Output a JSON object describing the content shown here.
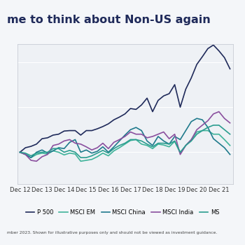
{
  "chart_data": {
    "type": "line",
    "title": "me to think about Non-US again",
    "footnote": "mber 2023. Shown for illustrative purposes only and should not be viewed as investment guidance.",
    "categories": [
      "Dec 12",
      null,
      null,
      null,
      "Dec 13",
      null,
      null,
      null,
      "Dec 14",
      null,
      null,
      null,
      "Dec 15",
      null,
      null,
      null,
      "Dec 16",
      null,
      null,
      null,
      "Dec 17",
      null,
      null,
      null,
      "Dec 18",
      null,
      null,
      null,
      "Dec 19",
      null,
      null,
      null,
      "Dec 20",
      null,
      null,
      null,
      "Dec 21",
      null,
      null
    ],
    "series": [
      {
        "name": "P 500",
        "color": "#1f2a5a",
        "values": [
          100,
          110,
          113,
          118,
          130,
          132,
          138,
          140,
          147,
          148,
          148,
          138,
          148,
          148,
          152,
          157,
          163,
          172,
          178,
          185,
          197,
          195,
          205,
          220,
          190,
          215,
          225,
          230,
          250,
          200,
          240,
          265,
          295,
          312,
          330,
          338,
          325,
          310,
          285
        ]
      },
      {
        "name": "MSCI EM",
        "color": "#3fb39a",
        "values": [
          100,
          95,
          88,
          95,
          98,
          96,
          103,
          100,
          94,
          98,
          96,
          80,
          82,
          84,
          90,
          98,
          92,
          103,
          110,
          118,
          126,
          128,
          118,
          115,
          108,
          118,
          116,
          112,
          124,
          98,
          115,
          128,
          145,
          148,
          148,
          140,
          140,
          128,
          115
        ]
      },
      {
        "name": "MSCI China",
        "color": "#1f7a8c",
        "values": [
          100,
          95,
          88,
          100,
          105,
          98,
          103,
          110,
          108,
          122,
          128,
          100,
          105,
          98,
          102,
          112,
          100,
          112,
          125,
          138,
          150,
          155,
          148,
          125,
          115,
          135,
          125,
          118,
          135,
          128,
          148,
          168,
          175,
          172,
          155,
          130,
          120,
          110,
          95
        ]
      },
      {
        "name": "MSCI India",
        "color": "#8a4f9e",
        "values": [
          100,
          95,
          82,
          80,
          90,
          95,
          115,
          118,
          125,
          128,
          120,
          118,
          112,
          105,
          110,
          120,
          108,
          122,
          128,
          135,
          145,
          140,
          140,
          132,
          135,
          140,
          145,
          130,
          140,
          95,
          115,
          128,
          150,
          160,
          170,
          185,
          190,
          175,
          165
        ]
      },
      {
        "name": "MS",
        "color": "#2a9d8f",
        "values": [
          100,
          98,
          92,
          98,
          100,
          100,
          108,
          108,
          100,
          104,
          100,
          88,
          88,
          92,
          98,
          104,
          98,
          108,
          115,
          120,
          128,
          128,
          125,
          118,
          112,
          120,
          120,
          118,
          125,
          100,
          115,
          125,
          140,
          148,
          155,
          160,
          160,
          150,
          140
        ]
      }
    ],
    "ylim": [
      30,
      340
    ],
    "yticks": [
      100,
      200,
      300
    ],
    "grid": true,
    "tick_labels": "x",
    "legend": "lower center"
  }
}
